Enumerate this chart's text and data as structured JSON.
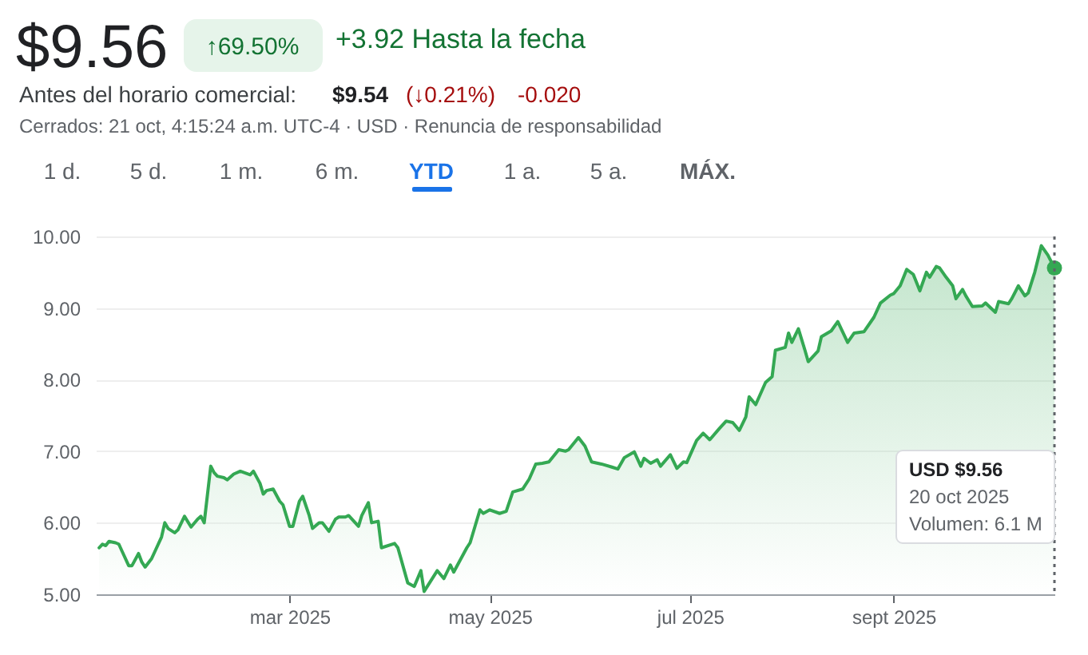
{
  "chart_data": {
    "type": "area",
    "title": "$9.56",
    "annotations": [
      "↑69.50%",
      "+3.92 Hasta la fecha",
      "Antes del horario comercial:",
      "$9.54",
      "(↓0.21%)",
      "-0.020",
      "Cerrados: 21 oct, 4:15:24 a.m. UTC-4 · USD · Renuncia de responsabilidad",
      "1 d.",
      "5 d.",
      "1 m.",
      "6 m.",
      "YTD",
      "1 a.",
      "5 a.",
      "MÁX.",
      "USD $9.56",
      "20 oct 2025",
      "Volumen: 6.1 M"
    ],
    "x": [
      "2025-01-02",
      "2025-01-03",
      "2025-01-04",
      "2025-01-05",
      "2025-01-07",
      "2025-01-08",
      "2025-01-09",
      "2025-01-11",
      "2025-01-12",
      "2025-01-14",
      "2025-01-15",
      "2025-01-16",
      "2025-01-18",
      "2025-01-19",
      "2025-01-21",
      "2025-01-22",
      "2025-01-23",
      "2025-01-25",
      "2025-01-26",
      "2025-01-28",
      "2025-01-30",
      "2025-02-01",
      "2025-02-02",
      "2025-02-03",
      "2025-02-05",
      "2025-02-06",
      "2025-02-07",
      "2025-02-09",
      "2025-02-10",
      "2025-02-12",
      "2025-02-14",
      "2025-02-17",
      "2025-02-18",
      "2025-02-20",
      "2025-02-21",
      "2025-02-22",
      "2025-02-24",
      "2025-02-26",
      "2025-02-27",
      "2025-03-01",
      "2025-03-02",
      "2025-03-04",
      "2025-03-05",
      "2025-03-07",
      "2025-03-08",
      "2025-03-10",
      "2025-03-11",
      "2025-03-13",
      "2025-03-15",
      "2025-03-16",
      "2025-03-18",
      "2025-03-19",
      "2025-03-20",
      "2025-03-22",
      "2025-03-23",
      "2025-03-25",
      "2025-03-26",
      "2025-03-28",
      "2025-03-29",
      "2025-04-02",
      "2025-04-03",
      "2025-04-06",
      "2025-04-08",
      "2025-04-10",
      "2025-04-11",
      "2025-04-15",
      "2025-04-17",
      "2025-04-19",
      "2025-04-20",
      "2025-04-24",
      "2025-04-25",
      "2025-04-28",
      "2025-04-29",
      "2025-05-01",
      "2025-05-04",
      "2025-05-06",
      "2025-05-08",
      "2025-05-11",
      "2025-05-13",
      "2025-05-15",
      "2025-05-17",
      "2025-05-19",
      "2025-05-22",
      "2025-05-24",
      "2025-05-25",
      "2025-05-28",
      "2025-05-30",
      "2025-06-01",
      "2025-06-04",
      "2025-06-07",
      "2025-06-09",
      "2025-06-11",
      "2025-06-14",
      "2025-06-16",
      "2025-06-17",
      "2025-06-19",
      "2025-06-21",
      "2025-06-22",
      "2025-06-25",
      "2025-06-27",
      "2025-06-29",
      "2025-06-30",
      "2025-07-03",
      "2025-07-05",
      "2025-07-07",
      "2025-07-10",
      "2025-07-12",
      "2025-07-14",
      "2025-07-16",
      "2025-07-18",
      "2025-07-19",
      "2025-07-21",
      "2025-07-24",
      "2025-07-26",
      "2025-07-27",
      "2025-07-30",
      "2025-07-31",
      "2025-08-01",
      "2025-08-03",
      "2025-08-05",
      "2025-08-06",
      "2025-08-09",
      "2025-08-10",
      "2025-08-13",
      "2025-08-15",
      "2025-08-18",
      "2025-08-20",
      "2025-08-23",
      "2025-08-26",
      "2025-08-28",
      "2025-08-31",
      "2025-09-01",
      "2025-09-03",
      "2025-09-05",
      "2025-09-07",
      "2025-09-09",
      "2025-09-11",
      "2025-09-12",
      "2025-09-14",
      "2025-09-15",
      "2025-09-17",
      "2025-09-19",
      "2025-09-20",
      "2025-09-22",
      "2025-09-23",
      "2025-09-25",
      "2025-09-28",
      "2025-09-29",
      "2025-10-02",
      "2025-10-03",
      "2025-10-06",
      "2025-10-07",
      "2025-10-09",
      "2025-10-11",
      "2025-10-12",
      "2025-10-14",
      "2025-10-16",
      "2025-10-18",
      "2025-10-20"
    ],
    "series": [
      {
        "color": "#34a853",
        "values": [
          5.65,
          5.7,
          5.68,
          5.74,
          5.72,
          5.7,
          5.6,
          5.4,
          5.4,
          5.57,
          5.45,
          5.38,
          5.5,
          5.6,
          5.8,
          6.0,
          5.92,
          5.86,
          5.9,
          6.09,
          5.94,
          6.05,
          6.09,
          6.0,
          6.79,
          6.7,
          6.65,
          6.63,
          6.6,
          6.68,
          6.72,
          6.67,
          6.72,
          6.55,
          6.4,
          6.45,
          6.47,
          6.3,
          6.25,
          5.95,
          5.95,
          6.3,
          6.37,
          6.1,
          5.92,
          6.0,
          6.0,
          5.88,
          6.05,
          6.08,
          6.08,
          6.1,
          6.05,
          5.95,
          6.1,
          6.28,
          6.0,
          6.02,
          5.65,
          5.71,
          5.65,
          5.16,
          5.11,
          5.33,
          5.04,
          5.33,
          5.22,
          5.41,
          5.31,
          5.65,
          5.72,
          6.18,
          6.13,
          6.18,
          6.13,
          6.16,
          6.43,
          6.47,
          6.61,
          6.82,
          6.83,
          6.85,
          7.02,
          7.0,
          7.02,
          7.19,
          7.07,
          6.85,
          6.82,
          6.78,
          6.75,
          6.91,
          6.99,
          6.79,
          6.9,
          6.83,
          6.88,
          6.79,
          6.95,
          6.76,
          6.85,
          6.84,
          7.15,
          7.25,
          7.16,
          7.32,
          7.42,
          7.4,
          7.29,
          7.48,
          7.76,
          7.65,
          7.96,
          8.04,
          8.41,
          8.45,
          8.65,
          8.52,
          8.71,
          8.41,
          8.25,
          8.4,
          8.6,
          8.68,
          8.81,
          8.52,
          8.65,
          8.67,
          8.87,
          9.07,
          9.18,
          9.2,
          9.31,
          9.54,
          9.47,
          9.24,
          9.5,
          9.43,
          9.58,
          9.56,
          9.43,
          9.31,
          9.13,
          9.26,
          9.17,
          9.02,
          9.03,
          9.07,
          8.94,
          9.09,
          9.06,
          9.13,
          9.31,
          9.17,
          9.21,
          9.5,
          9.87,
          9.74,
          9.56
        ]
      },
      {
        "type": "scatter",
        "color": "#34a853",
        "x": [
          "2025-10-20"
        ],
        "values": [
          9.56
        ]
      }
    ],
    "xlim": [
      "2025-01-01",
      "2025-10-20"
    ],
    "xticks": [
      {
        "value": "2025-03-01",
        "label": "mar 2025"
      },
      {
        "value": "2025-05-01",
        "label": "may 2025"
      },
      {
        "value": "2025-07-01",
        "label": "jul 2025"
      },
      {
        "value": "2025-09-01",
        "label": "sept 2025"
      }
    ],
    "ylim": [
      5,
      10
    ],
    "yticks": [
      {
        "value": 5,
        "label": "5.00"
      },
      {
        "value": 6,
        "label": "6.00"
      },
      {
        "value": 7,
        "label": "7.00"
      },
      {
        "value": 8,
        "label": "8.00"
      },
      {
        "value": 9,
        "label": "9.00"
      },
      {
        "value": 10,
        "label": "10.00"
      }
    ],
    "ref_lines": [
      {
        "axis": "x",
        "value": "2025-10-20",
        "color": "#5f6368",
        "line_style": "dotted"
      }
    ],
    "grid": "y",
    "line_style": "solid"
  }
}
